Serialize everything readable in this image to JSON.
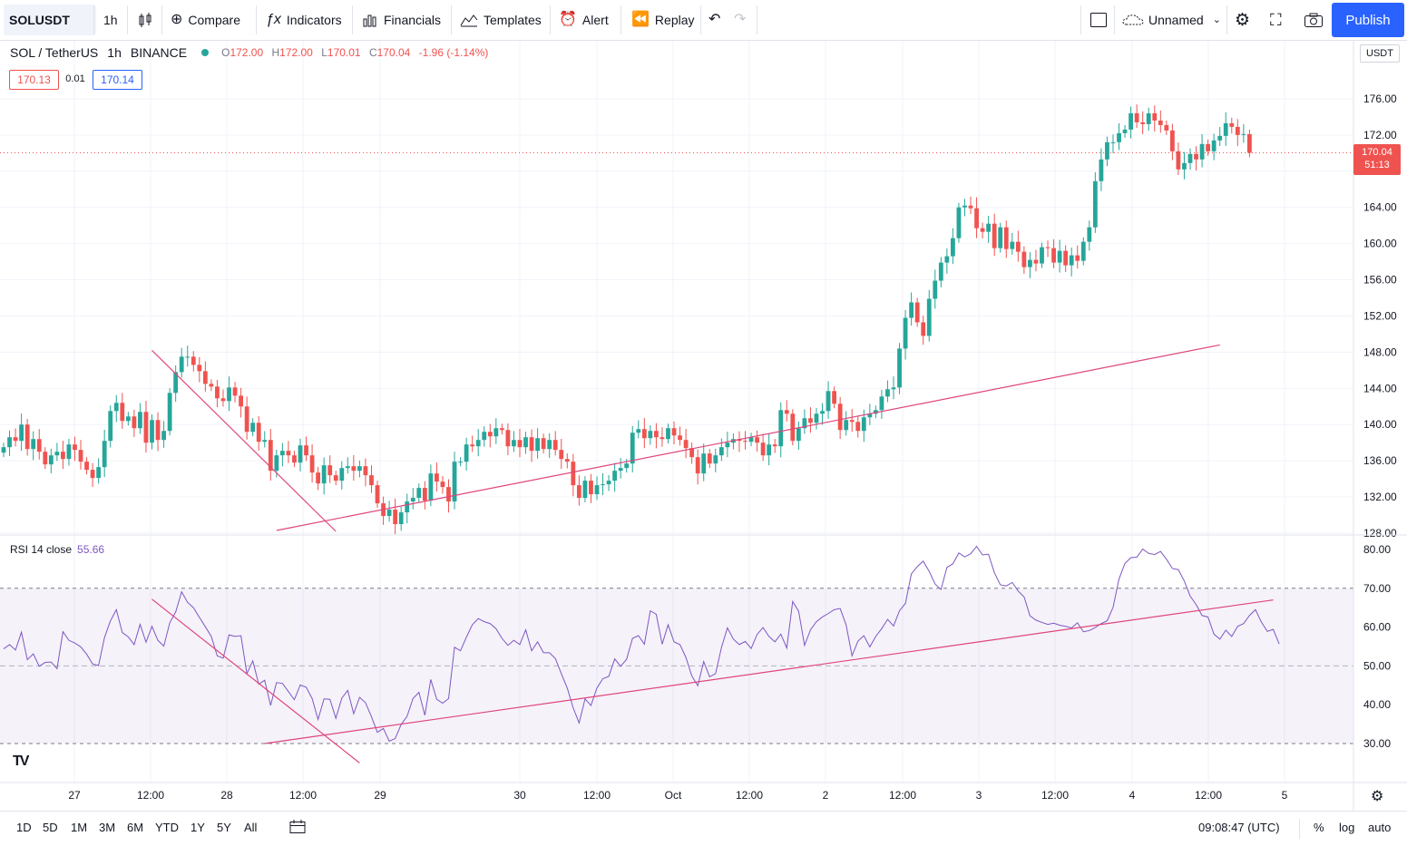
{
  "toolbar": {
    "symbol": "SOLUSDT",
    "interval": "1h",
    "compare": "Compare",
    "indicators": "Indicators",
    "financials": "Financials",
    "templates": "Templates",
    "alert": "Alert",
    "replay": "Replay",
    "layout_name": "Unnamed",
    "publish": "Publish"
  },
  "legend": {
    "pair": "SOL / TetherUS",
    "interval": "1h",
    "exchange": "BINANCE",
    "open_label": "O",
    "open": "172.00",
    "high_label": "H",
    "high": "172.00",
    "low_label": "L",
    "low": "170.01",
    "close_label": "C",
    "close": "170.04",
    "change": "-1.96 (-1.14%)",
    "bid": "170.13",
    "spread": "0.01",
    "ask": "170.14"
  },
  "price_axis": {
    "currency": "USDT",
    "ticks": [
      "176.00",
      "172.00",
      "168.00",
      "164.00",
      "160.00",
      "156.00",
      "152.00",
      "148.00",
      "144.00",
      "140.00",
      "136.00",
      "132.00",
      "128.00"
    ],
    "last_price": "170.04",
    "countdown": "51:13"
  },
  "rsi": {
    "label": "RSI 14 close",
    "value": "55.66",
    "ticks": [
      "80.00",
      "70.00",
      "60.00",
      "50.00",
      "40.00",
      "30.00"
    ]
  },
  "time_axis": [
    "27",
    "12:00",
    "28",
    "12:00",
    "29",
    "30",
    "12:00",
    "Oct",
    "12:00",
    "2",
    "12:00",
    "3",
    "12:00",
    "4",
    "12:00",
    "5"
  ],
  "bottom": {
    "ranges": [
      "1D",
      "5D",
      "1M",
      "3M",
      "6M",
      "YTD",
      "1Y",
      "5Y",
      "All"
    ],
    "clock": "09:08:47 (UTC)",
    "percent": "%",
    "log": "log",
    "auto": "auto"
  },
  "colors": {
    "up": "#26a69a",
    "down": "#ef5350",
    "trendline": "#e0457b",
    "rsi": "#7e57c2",
    "accent": "#2962ff"
  },
  "chart_data": {
    "type": "candlestick",
    "price_ylim": [
      128,
      178
    ],
    "closes": [
      137.5,
      138.6,
      138.2,
      140,
      137.3,
      138.4,
      137,
      135.6,
      136.6,
      137,
      136.2,
      137.8,
      137.2,
      135.9,
      135,
      134.1,
      135.3,
      138.2,
      141.5,
      142.4,
      140.4,
      140.9,
      139.6,
      141.4,
      138,
      140.5,
      138.3,
      139.3,
      143.5,
      145.8,
      147.5,
      147.5,
      146.6,
      145.9,
      144.5,
      144.2,
      142.9,
      142.6,
      144.1,
      143.2,
      142,
      139.2,
      140.2,
      138.1,
      138.3,
      134.9,
      136.6,
      137.1,
      136.6,
      135.8,
      137.7,
      136.6,
      134.7,
      133.5,
      135.5,
      134.4,
      133.8,
      135.2,
      135.4,
      134.9,
      135.4,
      134.4,
      133.3,
      131.3,
      129.9,
      130.6,
      129,
      130.3,
      131.5,
      131.9,
      133,
      131.6,
      134.6,
      133.7,
      133.1,
      131.5,
      135.9,
      135.9,
      137.8,
      137.6,
      138.3,
      139.2,
      138.7,
      139.6,
      139.4,
      137.6,
      138.3,
      137.5,
      138.6,
      137.1,
      138.5,
      137.3,
      138.3,
      137.2,
      136.2,
      135.9,
      133.3,
      131.9,
      133.8,
      132.3,
      133.3,
      133.4,
      133.8,
      134.9,
      135.2,
      135.7,
      139.1,
      139.5,
      138.5,
      139.3,
      138.6,
      138.4,
      139.6,
      138.8,
      138.3,
      137.4,
      136.4,
      134.6,
      136.8,
      135.7,
      136.6,
      137.5,
      138,
      138.4,
      138.2,
      138.1,
      138.6,
      138,
      136.6,
      137.8,
      137.6,
      141.6,
      141.2,
      138.2,
      139.6,
      140.7,
      140.2,
      141.2,
      141.5,
      143.7,
      142.3,
      139.4,
      140.5,
      140.3,
      139.3,
      140.8,
      141.2,
      141.6,
      143.1,
      143.9,
      144.1,
      148.4,
      151.8,
      153.5,
      151.3,
      149.8,
      153.9,
      155.9,
      157.9,
      158.6,
      160.6,
      164,
      164.2,
      163.9,
      161.7,
      161.3,
      162.2,
      159.5,
      161.8,
      159.4,
      160.2,
      159.1,
      157.4,
      158.2,
      157.8,
      159.6,
      159.5,
      157.9,
      159.2,
      157.6,
      158.7,
      158.1,
      160.2,
      161.8,
      166.9,
      169.3,
      171.2,
      171.2,
      172.2,
      172.6,
      174.4,
      173.4,
      173.2,
      174.4,
      173.6,
      173.1,
      172.5,
      170.2,
      168.2,
      168.9,
      169.9,
      169.3,
      171,
      170.2,
      171.4,
      171.9,
      173.3,
      172.9,
      172,
      172.1,
      170.04
    ],
    "rsi_values": [
      54.4,
      55.5,
      54.1,
      58.7,
      51.6,
      53.1,
      49.9,
      50.9,
      51,
      49.3,
      58.8,
      56.6,
      55.9,
      54.9,
      53,
      50.5,
      50.1,
      57.3,
      61.6,
      64.5,
      58.6,
      57.5,
      55.5,
      60.7,
      56.1,
      60.2,
      56.6,
      55.1,
      61.1,
      63.9,
      69.1,
      66.4,
      65,
      62.5,
      60.1,
      57.6,
      52.6,
      52,
      58,
      57.6,
      57.8,
      48,
      51.3,
      45.3,
      46.3,
      39.8,
      45.7,
      45.5,
      43.4,
      41.3,
      45.1,
      44.5,
      41.6,
      36.2,
      41.5,
      41.4,
      36.5,
      41.7,
      43.7,
      37.7,
      41.9,
      40.5,
      36.9,
      32.9,
      33.9,
      30.6,
      31.3,
      34.9,
      37,
      41.6,
      43.2,
      37.3,
      46.5,
      41.4,
      40.4,
      41.6,
      54.8,
      53.9,
      57.4,
      60.6,
      62.2,
      61.4,
      60.9,
      59.6,
      57.1,
      55.3,
      56.6,
      55.5,
      59.3,
      53.9,
      56.2,
      53.4,
      53.4,
      51.9,
      48,
      44.3,
      39.2,
      35.3,
      41.5,
      39.8,
      44.3,
      46.7,
      47.3,
      51.8,
      49.9,
      51.7,
      57.1,
      57.8,
      55.6,
      64.2,
      63.3,
      55.6,
      60.6,
      56.2,
      55.5,
      52.2,
      47.4,
      44.9,
      51.1,
      47.2,
      48,
      54.8,
      59.8,
      56.9,
      55.5,
      56.3,
      54.5,
      58.1,
      59.9,
      57.6,
      56.2,
      58.2,
      54.6,
      66.6,
      64.1,
      55.3,
      59.3,
      61.4,
      62.6,
      63.5,
      64.5,
      64.8,
      60.6,
      52.6,
      56.4,
      57.8,
      54.9,
      57.6,
      59.6,
      62,
      60.3,
      64.2,
      66.1,
      73.7,
      75.6,
      77,
      74.4,
      71.1,
      69.7,
      75.4,
      76.3,
      79.1,
      78.1,
      78.9,
      80.8,
      78.6,
      78.8,
      74,
      70.9,
      70.6,
      71.5,
      69.3,
      67.8,
      62.9,
      61.8,
      61.2,
      60.7,
      61,
      60.5,
      60.2,
      59.8,
      61.1,
      58.8,
      59.1,
      59.9,
      60.9,
      61.6,
      65.1,
      72.4,
      76.4,
      77.9,
      78,
      80.1,
      79,
      78.7,
      79.5,
      77.5,
      75.1,
      74.8,
      71.9,
      68,
      65.8,
      63,
      62.6,
      58.2,
      56.9,
      59.2,
      57.6,
      60.2,
      60.9,
      63,
      64.5,
      61.3,
      58.9,
      59.4,
      55.66
    ],
    "trendlines_price": [
      {
        "from": [
          25,
          148.2
        ],
        "to": [
          56,
          128.2
        ]
      },
      {
        "from": [
          46,
          128.3
        ],
        "to": [
          205,
          148.8
        ]
      }
    ],
    "trendlines_rsi": [
      {
        "from": [
          25,
          67.2
        ],
        "to": [
          60,
          25
        ]
      },
      {
        "from": [
          44,
          30
        ],
        "to": [
          214,
          67
        ]
      }
    ]
  }
}
